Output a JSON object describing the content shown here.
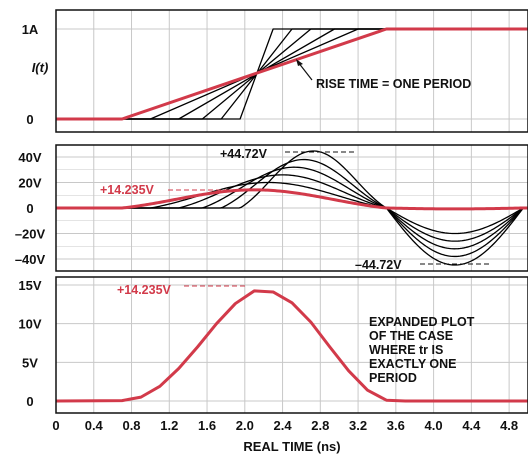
{
  "colors": {
    "highlight": "#d23a4a",
    "trace": "#000000",
    "grid": "#c8c8c8",
    "frame": "#111111"
  },
  "x_axis": {
    "label": "REAL TIME (ns)",
    "ticks": [
      "0",
      "0.4",
      "0.8",
      "1.2",
      "1.6",
      "2.0",
      "2.4",
      "2.8",
      "3.2",
      "3.6",
      "4.0",
      "4.4",
      "4.8"
    ],
    "range": [
      0,
      5.0
    ]
  },
  "panels": [
    {
      "id": "current",
      "ylabel": "I(t)",
      "yticks": [
        {
          "label": "1A",
          "value": 1
        },
        {
          "label": "0",
          "value": 0
        }
      ],
      "annotation": "RISE TIME = ONE PERIOD"
    },
    {
      "id": "voltage",
      "yticks": [
        {
          "label": "40V",
          "value": 40
        },
        {
          "label": "20V",
          "value": 20
        },
        {
          "label": "0",
          "value": 0
        },
        {
          "label": "–20V",
          "value": -20
        },
        {
          "label": "–40V",
          "value": -40
        }
      ],
      "annotations": {
        "red_peak": "+14.235V",
        "black_max": "+44.72V",
        "black_min": "–44.72V"
      }
    },
    {
      "id": "expanded",
      "yticks": [
        {
          "label": "15V",
          "value": 15
        },
        {
          "label": "10V",
          "value": 10
        },
        {
          "label": "5V",
          "value": 5
        },
        {
          "label": "0",
          "value": 0
        }
      ],
      "annotations": {
        "red_peak": "+14.235V",
        "note_lines": [
          "EXPANDED PLOT",
          "OF THE CASE",
          "WHERE tr IS",
          "EXACTLY ONE",
          "PERIOD"
        ]
      }
    }
  ],
  "chart_data": [
    {
      "type": "line",
      "title": "",
      "xlabel": "",
      "ylabel": "I(t)",
      "xlim": [
        0,
        5.0
      ],
      "ylim": [
        0,
        1
      ],
      "series": [
        {
          "color": "#d23a4a",
          "x": [
            0,
            0.7,
            3.5,
            5.0
          ],
          "y": [
            0,
            0,
            1,
            1
          ]
        },
        {
          "color": "#000000",
          "x": [
            0,
            1.0,
            3.2,
            5.0
          ],
          "y": [
            0,
            0,
            1,
            1
          ]
        },
        {
          "color": "#000000",
          "x": [
            0,
            1.3,
            2.95,
            5.0
          ],
          "y": [
            0,
            0,
            1,
            1
          ]
        },
        {
          "color": "#000000",
          "x": [
            0,
            1.55,
            2.7,
            5.0
          ],
          "y": [
            0,
            0,
            1,
            1
          ]
        },
        {
          "color": "#000000",
          "x": [
            0,
            1.75,
            2.5,
            5.0
          ],
          "y": [
            0,
            0,
            1,
            1
          ]
        },
        {
          "color": "#000000",
          "x": [
            0,
            1.95,
            2.3,
            5.0
          ],
          "y": [
            0,
            0,
            1,
            1
          ]
        }
      ]
    },
    {
      "type": "line",
      "title": "",
      "xlim": [
        0,
        5.0
      ],
      "ylim": [
        -50,
        50
      ],
      "peak_amplitudes": [
        14.235,
        20,
        26,
        32,
        38,
        44.72
      ],
      "series": [
        {
          "color": "#d23a4a",
          "amplitude": 14.235,
          "rise_start": 0.7,
          "rise_end": 3.5
        },
        {
          "color": "#000000",
          "amplitude": 20,
          "rise_start": 1.0,
          "rise_end": 3.5
        },
        {
          "color": "#000000",
          "amplitude": 26,
          "rise_start": 1.3,
          "rise_end": 3.5
        },
        {
          "color": "#000000",
          "amplitude": 32,
          "rise_start": 1.55,
          "rise_end": 3.5
        },
        {
          "color": "#000000",
          "amplitude": 38,
          "rise_start": 1.75,
          "rise_end": 3.5
        },
        {
          "color": "#000000",
          "amplitude": 44.72,
          "rise_start": 1.95,
          "rise_end": 3.5
        }
      ]
    },
    {
      "type": "line",
      "title": "",
      "xlim": [
        0,
        5.0
      ],
      "ylim": [
        0,
        15
      ],
      "series": [
        {
          "color": "#d23a4a",
          "x": [
            0,
            0.7,
            0.9,
            1.1,
            1.3,
            1.5,
            1.7,
            1.9,
            2.1,
            2.3,
            2.5,
            2.7,
            2.9,
            3.1,
            3.3,
            3.5,
            3.7,
            4.0,
            4.5,
            5.0
          ],
          "y": [
            0,
            0.05,
            0.5,
            1.9,
            4.2,
            7.0,
            10.0,
            12.6,
            14.235,
            14.1,
            12.7,
            10.2,
            7.0,
            3.9,
            1.4,
            0.1,
            0,
            0,
            0,
            0
          ]
        }
      ]
    }
  ]
}
